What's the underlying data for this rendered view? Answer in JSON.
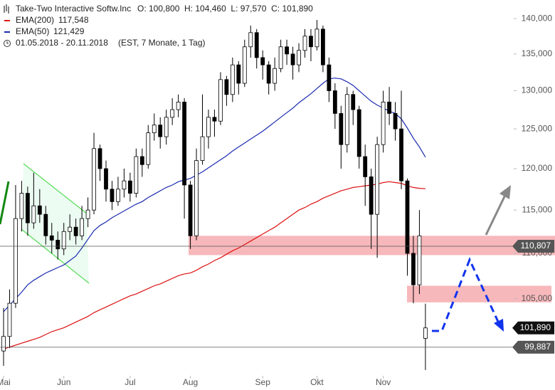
{
  "chart_data": {
    "type": "candlestick",
    "title": "Take-Two Interactive Softw.Inc",
    "quote": "O: 100,800  H: 104,460  L: 97,570  C: 101,890",
    "period": "01.05.2018 - 20.11.2018",
    "period_note": "(EST, 7 Monate, 1 Tag)",
    "log_scale": true,
    "ylim": [
      97000,
      142700
    ],
    "yticks": [
      {
        "value": 105000,
        "label": "105,000"
      },
      {
        "value": 110000,
        "label": "110,000"
      },
      {
        "value": 115000,
        "label": "115,000"
      },
      {
        "value": 120000,
        "label": "120,000"
      },
      {
        "value": 125000,
        "label": "125,000"
      },
      {
        "value": 130000,
        "label": "130,000"
      },
      {
        "value": 135000,
        "label": "135,000"
      },
      {
        "value": 140000,
        "label": "140,000"
      }
    ],
    "xticks": [
      {
        "value": 0,
        "label": "Mai"
      },
      {
        "value": 10,
        "label": "Jun"
      },
      {
        "value": 21,
        "label": "Jul"
      },
      {
        "value": 31,
        "label": "Aug"
      },
      {
        "value": 43,
        "label": "Sep"
      },
      {
        "value": 52,
        "label": "Okt"
      },
      {
        "value": 63,
        "label": "Nov"
      }
    ],
    "up_color": "#ffffff",
    "down_color": "#000000",
    "candles": [
      [
        99500,
        104000,
        98000,
        101000
      ],
      [
        101000,
        106000,
        99800,
        104500
      ],
      [
        104500,
        118000,
        104000,
        114000
      ],
      [
        114000,
        118500,
        112500,
        117000
      ],
      [
        117000,
        117800,
        112000,
        113500
      ],
      [
        113500,
        119500,
        112800,
        115500
      ],
      [
        115500,
        117500,
        113500,
        114500
      ],
      [
        114500,
        115500,
        111000,
        112000
      ],
      [
        112000,
        113500,
        110000,
        111500
      ],
      [
        111500,
        112500,
        109300,
        110500
      ],
      [
        110500,
        113500,
        109800,
        112500
      ],
      [
        112500,
        114500,
        111500,
        113000
      ],
      [
        113000,
        114000,
        111000,
        112000
      ],
      [
        112000,
        115500,
        111500,
        114000
      ],
      [
        114000,
        116500,
        113000,
        115000
      ],
      [
        115000,
        124500,
        114500,
        122500
      ],
      [
        122500,
        123000,
        118500,
        120000
      ],
      [
        120000,
        121000,
        116000,
        117500
      ],
      [
        117500,
        118500,
        115000,
        116000
      ],
      [
        116000,
        119000,
        115500,
        117500
      ],
      [
        117500,
        120000,
        116500,
        118500
      ],
      [
        118500,
        119500,
        116000,
        117000
      ],
      [
        117000,
        122500,
        116500,
        121500
      ],
      [
        121500,
        122500,
        119000,
        120500
      ],
      [
        120500,
        125500,
        120000,
        124500
      ],
      [
        124500,
        127000,
        123500,
        125500
      ],
      [
        125500,
        126500,
        122500,
        124000
      ],
      [
        124000,
        127500,
        123000,
        126500
      ],
      [
        126500,
        129000,
        125500,
        127500
      ],
      [
        127500,
        129500,
        126500,
        128500
      ],
      [
        128500,
        129000,
        114000,
        118000
      ],
      [
        118000,
        118500,
        110500,
        112000
      ],
      [
        112000,
        122500,
        111500,
        121000
      ],
      [
        121000,
        129500,
        120500,
        124000
      ],
      [
        124000,
        127500,
        122500,
        126500
      ],
      [
        126500,
        127500,
        124000,
        126000
      ],
      [
        126000,
        132500,
        125500,
        131500
      ],
      [
        131500,
        132000,
        128000,
        129500
      ],
      [
        129500,
        134500,
        128500,
        133500
      ],
      [
        133500,
        134000,
        129500,
        131000
      ],
      [
        131000,
        137000,
        130500,
        136000
      ],
      [
        136000,
        139000,
        134500,
        138000
      ],
      [
        138000,
        138500,
        133000,
        134500
      ],
      [
        134500,
        135500,
        131500,
        133500
      ],
      [
        133500,
        134000,
        129500,
        131000
      ],
      [
        131000,
        134500,
        130000,
        133000
      ],
      [
        133000,
        137000,
        132500,
        136000
      ],
      [
        136000,
        137000,
        133500,
        135000
      ],
      [
        135000,
        136000,
        131500,
        133500
      ],
      [
        133500,
        136500,
        132500,
        135500
      ],
      [
        135500,
        138500,
        134500,
        137500
      ],
      [
        137500,
        138500,
        134000,
        136000
      ],
      [
        136000,
        139800,
        135500,
        138500
      ],
      [
        138500,
        139000,
        132500,
        133500
      ],
      [
        133500,
        134500,
        128500,
        130000
      ],
      [
        130000,
        131000,
        125000,
        127000
      ],
      [
        127000,
        128000,
        120000,
        123000
      ],
      [
        123000,
        130500,
        122000,
        129500
      ],
      [
        129500,
        130000,
        125500,
        127500
      ],
      [
        127500,
        128000,
        120000,
        121500
      ],
      [
        121500,
        123000,
        115500,
        119000
      ],
      [
        119000,
        120000,
        110500,
        114500
      ],
      [
        114500,
        124000,
        109500,
        123000
      ],
      [
        123000,
        130000,
        122000,
        128500
      ],
      [
        128500,
        130500,
        125500,
        127000
      ],
      [
        127000,
        128500,
        123500,
        125000
      ],
      [
        125000,
        130000,
        117500,
        118500
      ],
      [
        118500,
        118800,
        107500,
        110000
      ],
      [
        110000,
        112000,
        104500,
        106500
      ],
      [
        106500,
        115000,
        105500,
        112000
      ],
      [
        100800,
        104460,
        97570,
        101890
      ]
    ],
    "series": [
      {
        "name": "EMA(200)",
        "last_label": "117,548",
        "color": "#dd1111",
        "values": [
          99700,
          99900,
          100100,
          100300,
          100500,
          100700,
          100900,
          101200,
          101500,
          101700,
          101900,
          102200,
          102500,
          102800,
          103100,
          103500,
          103800,
          104100,
          104400,
          104700,
          105000,
          105300,
          105500,
          105800,
          106100,
          106400,
          106600,
          106900,
          107200,
          107500,
          107700,
          107800,
          108100,
          108500,
          108800,
          109200,
          109500,
          109900,
          110300,
          110600,
          111000,
          111400,
          111800,
          112200,
          112600,
          113000,
          113500,
          114000,
          114500,
          115000,
          115300,
          115700,
          116000,
          116400,
          116700,
          117000,
          117300,
          117500,
          117700,
          117800,
          117900,
          118000,
          118100,
          118300,
          118400,
          118300,
          118200,
          117900,
          117700,
          117600,
          117548
        ]
      },
      {
        "name": "EMA(50)",
        "last_label": "121,429",
        "color": "#1a2bb0",
        "values": [
          103600,
          104300,
          105000,
          105700,
          106500,
          107000,
          107400,
          107800,
          108100,
          108400,
          108700,
          109200,
          109700,
          110600,
          111600,
          112600,
          113200,
          113600,
          114100,
          114500,
          114900,
          115300,
          115700,
          116000,
          116500,
          116900,
          117300,
          117700,
          118000,
          118400,
          118600,
          118800,
          119200,
          119600,
          120100,
          120600,
          121100,
          121600,
          122200,
          122700,
          123200,
          123700,
          124200,
          124700,
          125300,
          125900,
          126500,
          127100,
          127700,
          128400,
          129000,
          129600,
          130300,
          131000,
          131600,
          131700,
          131600,
          131200,
          130700,
          130000,
          129300,
          128600,
          128100,
          127700,
          127300,
          127000,
          126300,
          125100,
          123800,
          122700,
          121429
        ]
      }
    ],
    "zones": [
      {
        "low": 109800,
        "high": 112000,
        "color": "#f4a0a4"
      },
      {
        "low": 104600,
        "high": 106400,
        "color": "#f4a0a4"
      }
    ],
    "ref_lines": [
      {
        "value": 110807,
        "label": "110,807"
      },
      {
        "value": 99887,
        "label": "99,887"
      }
    ],
    "last_price": {
      "value": 101890,
      "label": "101,890"
    }
  }
}
